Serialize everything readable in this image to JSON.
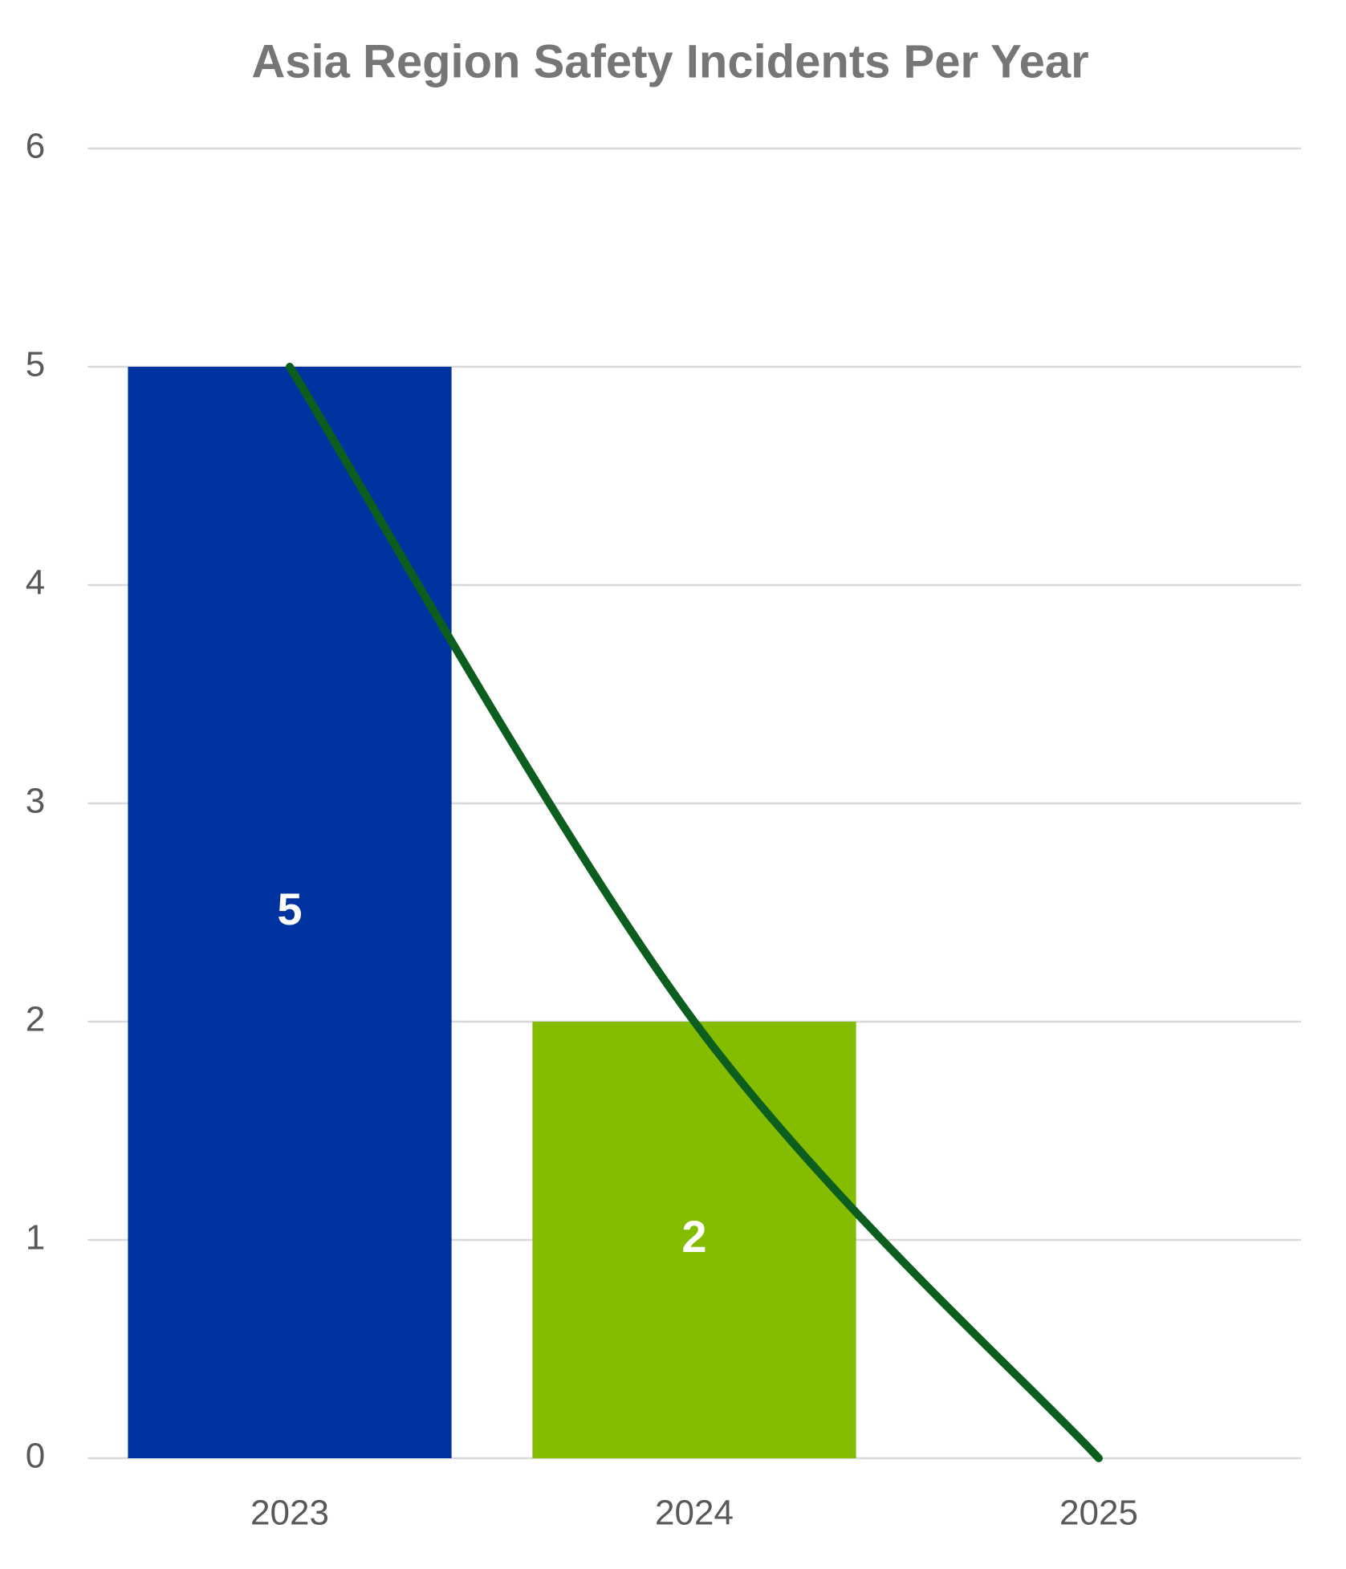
{
  "chart_data": {
    "type": "bar",
    "title": "Asia Region Safety Incidents Per Year",
    "categories": [
      "2023",
      "2024",
      "2025"
    ],
    "values": [
      5,
      2,
      null
    ],
    "colors": [
      "#0033a0",
      "#84bd00",
      "#84bd00"
    ],
    "trendline": {
      "color": "#0b5e1e",
      "values": [
        5,
        2,
        0
      ]
    },
    "ylim": [
      0,
      6
    ],
    "yticks": [
      0,
      1,
      2,
      3,
      4,
      5,
      6
    ],
    "grid": true,
    "data_labels": true
  }
}
